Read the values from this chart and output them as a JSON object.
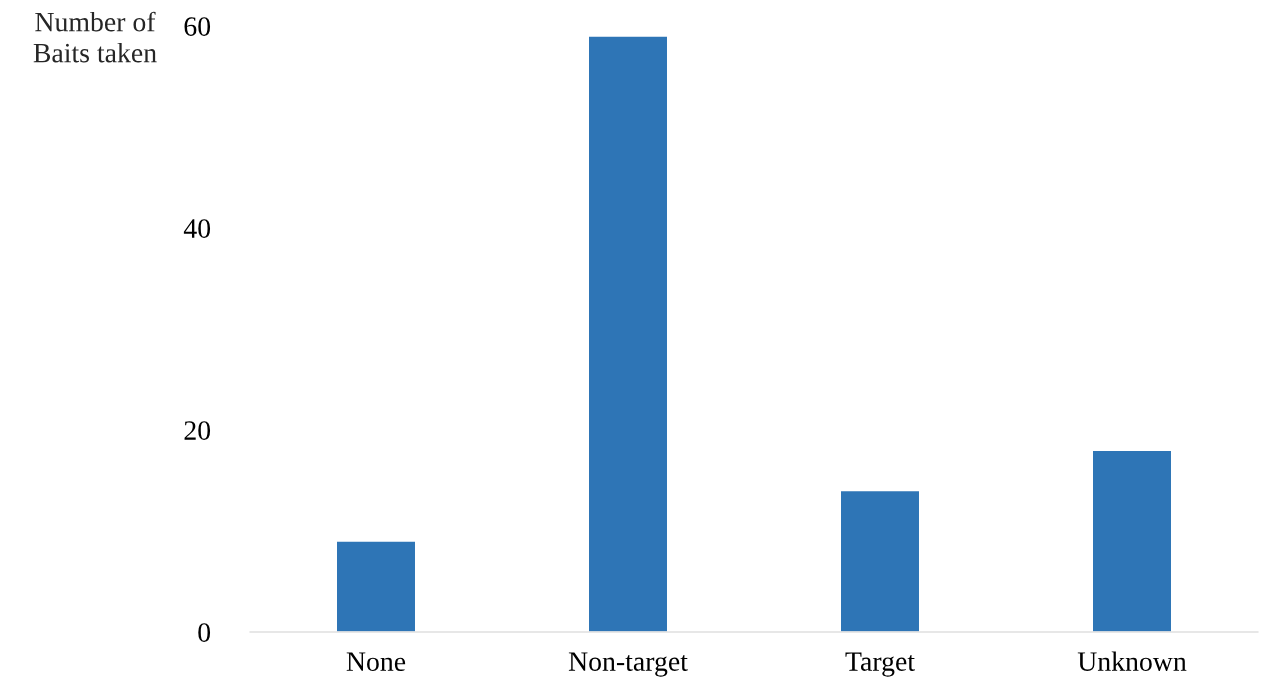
{
  "chart_data": {
    "type": "bar",
    "ylabel": "Number of\nBaits taken",
    "categories": [
      "None",
      "Non-target",
      "Target",
      "Unknown"
    ],
    "values": [
      9,
      59,
      14,
      18
    ],
    "color": "#2e75b6",
    "ylim": [
      0,
      60
    ],
    "yticks": [
      0,
      20,
      40,
      60
    ],
    "grid": false
  }
}
